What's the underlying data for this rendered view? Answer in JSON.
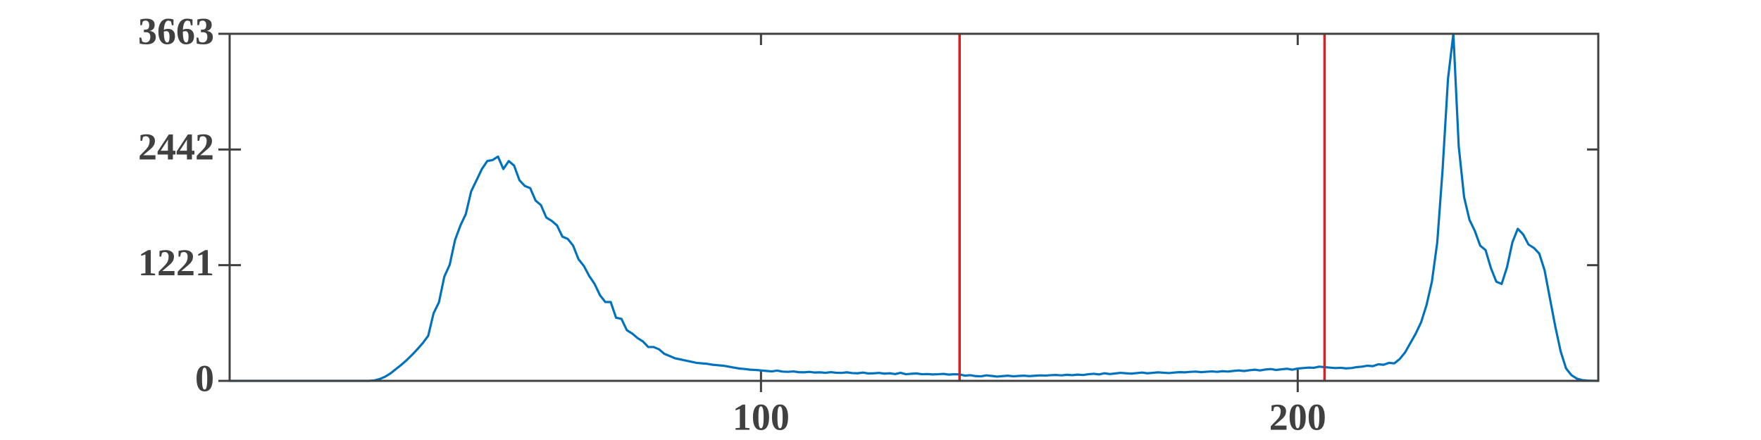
{
  "chart_data": {
    "type": "line",
    "x": [
      1,
      2,
      3,
      4,
      5,
      6,
      7,
      8,
      9,
      10,
      11,
      12,
      13,
      14,
      15,
      16,
      17,
      18,
      19,
      20,
      21,
      22,
      23,
      24,
      25,
      26,
      27,
      28,
      29,
      30,
      31,
      32,
      33,
      34,
      35,
      36,
      37,
      38,
      39,
      40,
      41,
      42,
      43,
      44,
      45,
      46,
      47,
      48,
      49,
      50,
      51,
      52,
      53,
      54,
      55,
      56,
      57,
      58,
      59,
      60,
      61,
      62,
      63,
      64,
      65,
      66,
      67,
      68,
      69,
      70,
      71,
      72,
      73,
      74,
      75,
      76,
      77,
      78,
      79,
      80,
      81,
      82,
      83,
      84,
      85,
      86,
      87,
      88,
      89,
      90,
      91,
      92,
      93,
      94,
      95,
      96,
      97,
      98,
      99,
      100,
      101,
      102,
      103,
      104,
      105,
      106,
      107,
      108,
      109,
      110,
      111,
      112,
      113,
      114,
      115,
      116,
      117,
      118,
      119,
      120,
      121,
      122,
      123,
      124,
      125,
      126,
      127,
      128,
      129,
      130,
      131,
      132,
      133,
      134,
      135,
      136,
      137,
      138,
      139,
      140,
      141,
      142,
      143,
      144,
      145,
      146,
      147,
      148,
      149,
      150,
      151,
      152,
      153,
      154,
      155,
      156,
      157,
      158,
      159,
      160,
      161,
      162,
      163,
      164,
      165,
      166,
      167,
      168,
      169,
      170,
      171,
      172,
      173,
      174,
      175,
      176,
      177,
      178,
      179,
      180,
      181,
      182,
      183,
      184,
      185,
      186,
      187,
      188,
      189,
      190,
      191,
      192,
      193,
      194,
      195,
      196,
      197,
      198,
      199,
      200,
      201,
      202,
      203,
      204,
      205,
      206,
      207,
      208,
      209,
      210,
      211,
      212,
      213,
      214,
      215,
      216,
      217,
      218,
      219,
      220,
      221,
      222,
      223,
      224,
      225,
      226,
      227,
      228,
      229,
      230,
      231,
      232,
      233,
      234,
      235,
      236,
      237,
      238,
      239,
      240,
      241,
      242,
      243,
      244,
      245,
      246,
      247,
      248,
      249,
      250,
      251,
      252,
      253,
      254,
      255,
      256
    ],
    "series": [
      {
        "color": "#0072bd",
        "values": [
          0,
          0,
          0,
          0,
          0,
          0,
          0,
          0,
          0,
          0,
          0,
          0,
          0,
          0,
          0,
          0,
          0,
          0,
          0,
          0,
          0,
          0,
          0,
          0,
          0,
          0,
          0,
          5,
          20,
          45,
          80,
          125,
          170,
          220,
          275,
          335,
          400,
          476,
          714,
          830,
          1100,
          1225,
          1487,
          1640,
          1760,
          2000,
          2117,
          2236,
          2320,
          2331,
          2367,
          2236,
          2320,
          2272,
          2117,
          2057,
          2034,
          1903,
          1855,
          1724,
          1689,
          1640,
          1522,
          1498,
          1427,
          1284,
          1213,
          1106,
          1023,
          904,
          832,
          832,
          666,
          654,
          535,
          500,
          452,
          416,
          357,
          357,
          333,
          285,
          262,
          238,
          226,
          214,
          202,
          190,
          185,
          180,
          170,
          165,
          160,
          150,
          140,
          130,
          125,
          118,
          115,
          110,
          105,
          100,
          108,
          98,
          95,
          100,
          92,
          90,
          95,
          88,
          90,
          85,
          92,
          86,
          84,
          90,
          82,
          80,
          88,
          78,
          80,
          84,
          76,
          80,
          72,
          85,
          70,
          75,
          78,
          70,
          72,
          68,
          70,
          74,
          66,
          70,
          68,
          55,
          60,
          50,
          48,
          58,
          52,
          45,
          50,
          55,
          48,
          52,
          55,
          50,
          54,
          58,
          56,
          60,
          62,
          58,
          64,
          60,
          66,
          62,
          70,
          75,
          68,
          80,
          72,
          78,
          85,
          80,
          76,
          82,
          88,
          80,
          85,
          90,
          86,
          82,
          88,
          92,
          90,
          95,
          98,
          92,
          96,
          100,
          95,
          102,
          98,
          105,
          110,
          104,
          112,
          118,
          110,
          120,
          125,
          115,
          122,
          128,
          118,
          130,
          135,
          140,
          138,
          150,
          145,
          140,
          135,
          138,
          132,
          135,
          145,
          150,
          160,
          155,
          175,
          170,
          190,
          185,
          230,
          300,
          400,
          500,
          620,
          800,
          1047,
          1463,
          2236,
          3187,
          3663,
          2474,
          1939,
          1700,
          1582,
          1427,
          1380,
          1189,
          1047,
          1023,
          1201,
          1463,
          1605,
          1546,
          1439,
          1403,
          1344,
          1166,
          868,
          571,
          309,
          131,
          60,
          24,
          8,
          3,
          1,
          0
        ]
      }
    ],
    "xlim": [
      1,
      256
    ],
    "xticks": [
      100,
      200
    ],
    "ylim": [
      0,
      3663
    ],
    "yticks": [
      0,
      1221,
      2442,
      3663
    ],
    "vlines": {
      "color": "#e41a1c",
      "values": [
        137,
        205
      ]
    }
  }
}
